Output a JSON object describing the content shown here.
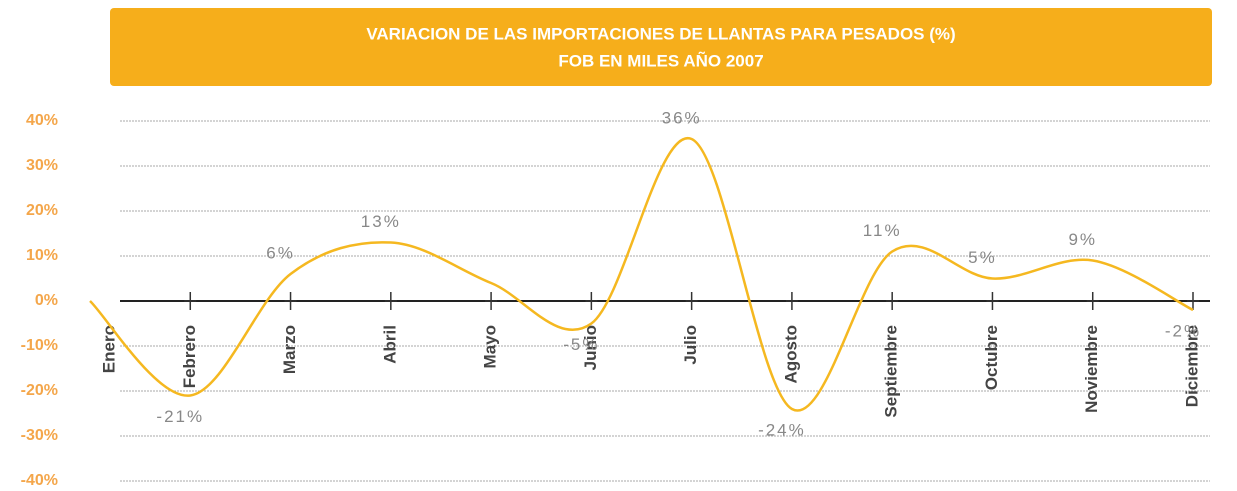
{
  "chart_data": {
    "type": "line",
    "title": "VARIACION DE LAS IMPORTACIONES DE LLANTAS PARA PESADOS (%)",
    "subtitle": "FOB EN MILES AÑO 2007",
    "categories": [
      "Enero",
      "Febrero",
      "Marzo",
      "Abril",
      "Mayo",
      "Junio",
      "Julio",
      "Agosto",
      "Septiembre",
      "Octubre",
      "Noviembre",
      "Diciembre"
    ],
    "values": [
      0,
      -21,
      6,
      13,
      4,
      -5,
      36,
      -24,
      11,
      5,
      9,
      -2
    ],
    "value_labels": [
      null,
      "-21%",
      "6%",
      "13%",
      null,
      "-5%",
      "36%",
      "-24%",
      "11%",
      "5%",
      "9%",
      "-2%"
    ],
    "color": "#f5b820",
    "ylim": [
      -40,
      40
    ],
    "yticks": [
      {
        "value": -40,
        "label": "-40%"
      },
      {
        "value": -30,
        "label": "-30%"
      },
      {
        "value": -20,
        "label": "-20%"
      },
      {
        "value": -10,
        "label": "-10%"
      },
      {
        "value": 0,
        "label": "0%"
      },
      {
        "value": 10,
        "label": "10%"
      },
      {
        "value": 20,
        "label": "20%"
      },
      {
        "value": 30,
        "label": "30%"
      },
      {
        "value": 40,
        "label": "40%"
      }
    ],
    "grid": true
  }
}
